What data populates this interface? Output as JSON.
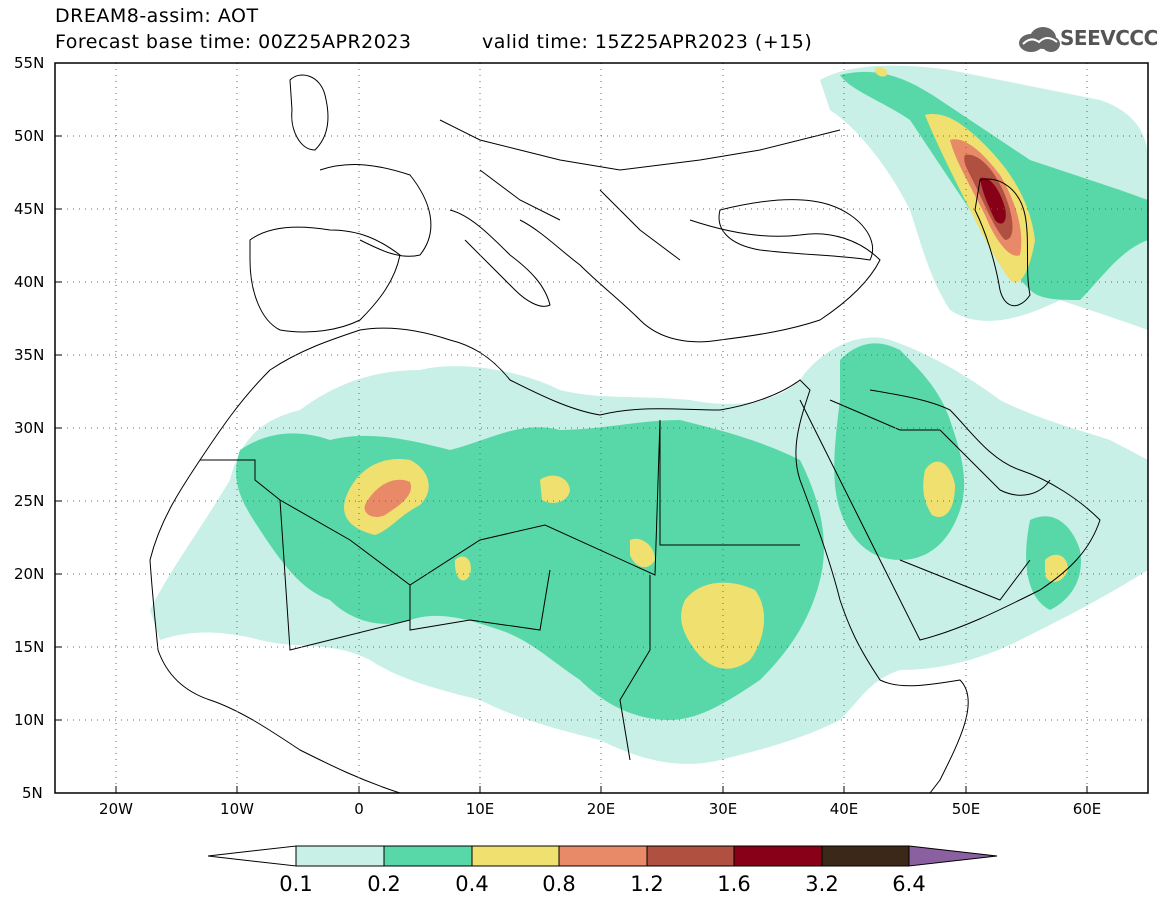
{
  "title": {
    "line1": "DREAM8-assim: AOT",
    "line2": "Forecast base time: 00Z25APR2023",
    "line3": "valid time: 15Z25APR2023 (+15)"
  },
  "logo": {
    "text": "SEEVCCC",
    "icon": "cloud-icon"
  },
  "map_axes": {
    "lat_labels": [
      "55N",
      "50N",
      "45N",
      "40N",
      "35N",
      "30N",
      "25N",
      "20N",
      "15N",
      "10N",
      "5N"
    ],
    "lon_labels": [
      "20W",
      "10W",
      "0",
      "10E",
      "20E",
      "30E",
      "40E",
      "50E",
      "60E"
    ],
    "lon_range": [
      -25,
      65
    ],
    "lat_range": [
      5,
      55
    ],
    "grid": "dotted"
  },
  "legend": {
    "labels": [
      "0.1",
      "0.2",
      "0.4",
      "0.8",
      "1.2",
      "1.6",
      "3.2",
      "6.4"
    ],
    "colors": [
      "#ffffff",
      "#c8f0e6",
      "#58d8a8",
      "#f0e070",
      "#e88a68",
      "#b05040",
      "#880018",
      "#3c2818",
      "#8a60a0"
    ]
  },
  "colors": {
    "c01": "#c8f0e6",
    "c02": "#58d8a8",
    "c04": "#f0e070",
    "c08": "#e88a68",
    "c12": "#b05040",
    "c16": "#880018"
  }
}
